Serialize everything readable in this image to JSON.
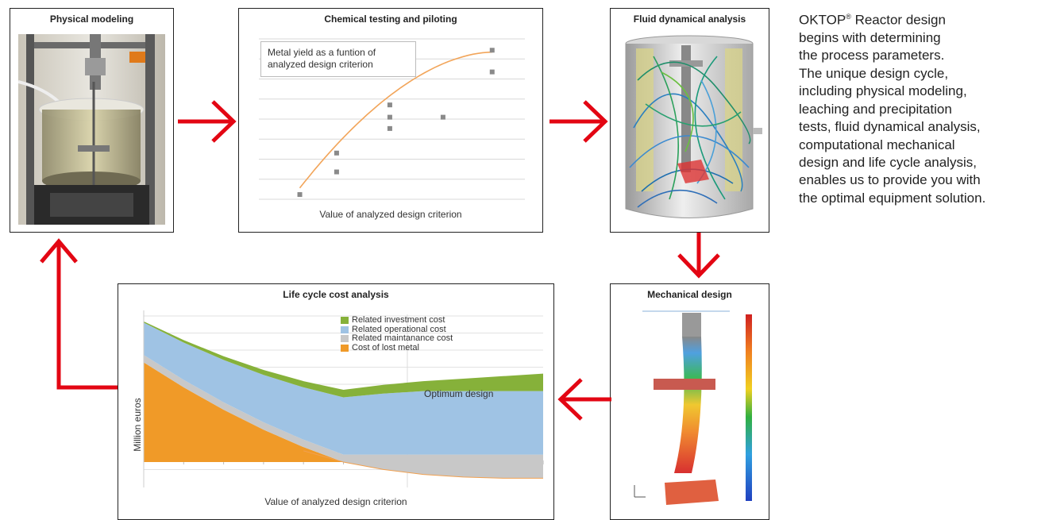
{
  "panels": {
    "physical_modeling": {
      "title": "Physical modeling"
    },
    "chemical_testing": {
      "title": "Chemical testing and piloting",
      "annotation_line1": "Metal yield as a funtion of",
      "annotation_line2": "analyzed design criterion",
      "xlabel": "Value of analyzed design criterion"
    },
    "fluid_analysis": {
      "title": "Fluid dynamical analysis"
    },
    "mechanical_design": {
      "title": "Mechanical design"
    },
    "life_cycle": {
      "title": "Life cycle cost analysis",
      "ylabel": "Million euros",
      "xlabel": "Value of analyzed design criterion",
      "optimum_label": "Optimum design",
      "legend": [
        {
          "label": "Related investment cost",
          "color": "#86b13a"
        },
        {
          "label": "Related operational cost",
          "color": "#9fc3e4"
        },
        {
          "label": "Related maintanance cost",
          "color": "#c8c8c8"
        },
        {
          "label": "Cost of lost metal",
          "color": "#f09a28"
        }
      ]
    }
  },
  "description": {
    "brand": "OKTOP",
    "registered_mark": "®",
    "text_after_brand": " Reactor design",
    "lines": [
      "begins with determining",
      "the process parameters.",
      "The unique design cycle,",
      "including physical modeling,",
      "leaching and precipitation",
      "tests, fluid dynamical analysis,",
      "computational mechanical",
      "design and life cycle analysis,",
      "enables us to provide you with",
      "the optimal equipment solution."
    ]
  },
  "colors": {
    "arrow": "#e30613",
    "curve": "#f2a55a",
    "point": "#8a8a8a"
  },
  "chart_data": [
    {
      "type": "scatter",
      "points": [
        [
          1.0,
          0.25
        ],
        [
          1.9,
          1.45
        ],
        [
          1.9,
          2.45
        ],
        [
          3.2,
          3.75
        ],
        [
          3.2,
          4.35
        ],
        [
          3.2,
          5.0
        ],
        [
          4.5,
          4.35
        ],
        [
          5.7,
          6.75
        ],
        [
          5.7,
          7.9
        ]
      ],
      "trend": "increasing curve",
      "xlabel": "Value of analyzed design criterion",
      "ylabel": ""
    },
    {
      "type": "area",
      "x": [
        0,
        1,
        2,
        3,
        4,
        5,
        6,
        7,
        8,
        9,
        10
      ],
      "series": [
        {
          "name": "Cost of lost metal",
          "values": [
            8.0,
            6.0,
            4.2,
            2.6,
            1.2,
            0.0,
            -0.6,
            -1.0,
            -1.2,
            -1.3,
            -1.3
          ]
        },
        {
          "name": "Related maintanance cost",
          "values": [
            0.6,
            0.6,
            0.6,
            0.6,
            0.6,
            0.6,
            0.6,
            0.6,
            0.6,
            0.6,
            0.6
          ]
        },
        {
          "name": "Related operational cost",
          "values": [
            2.6,
            3.0,
            3.4,
            3.8,
            4.2,
            4.6,
            4.9,
            5.1,
            5.1,
            5.1,
            5.1
          ]
        },
        {
          "name": "Related investment cost",
          "values": [
            0.1,
            0.2,
            0.3,
            0.4,
            0.5,
            0.6,
            0.7,
            0.8,
            1.0,
            1.2,
            1.4
          ]
        }
      ],
      "xlabel": "Value of analyzed design criterion",
      "ylabel": "Million euros",
      "annotation": "Optimum design",
      "legend_position": "top-right"
    }
  ]
}
